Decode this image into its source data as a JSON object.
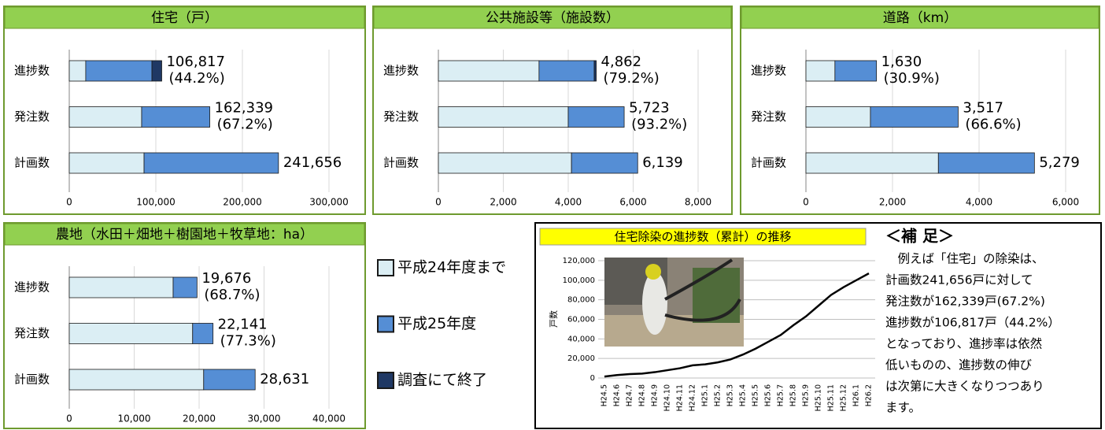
{
  "chart_data": [
    {
      "type": "bar",
      "orientation": "horizontal",
      "stacked": true,
      "title": "住宅（戸）",
      "categories": [
        "進捗数",
        "発注数",
        "計画数"
      ],
      "series": [
        {
          "values": [
            19000,
            83600,
            86400
          ]
        },
        {
          "values": [
            76500,
            78739,
            155256
          ]
        },
        {
          "values": [
            11317,
            null,
            null
          ]
        }
      ],
      "data_labels": [
        [
          "106,817",
          "(44.2%)"
        ],
        [
          "162,339",
          "(67.2%)"
        ],
        [
          "241,656"
        ]
      ],
      "xlim": [
        0,
        300000
      ],
      "xticks": [
        0,
        {
          "value": 100000,
          "label": "100,000"
        },
        {
          "value": 200000,
          "label": "200,000"
        },
        {
          "value": 300000,
          "label": "300,000"
        }
      ],
      "grid": true
    },
    {
      "type": "bar",
      "orientation": "horizontal",
      "stacked": true,
      "title": "公共施設等（施設数）",
      "categories": [
        "進捗数",
        "発注数",
        "計画数"
      ],
      "series": [
        {
          "values": [
            3100,
            4000,
            4100
          ]
        },
        {
          "values": [
            1700,
            1723,
            2039
          ]
        },
        {
          "values": [
            62,
            null,
            null
          ]
        }
      ],
      "data_labels": [
        [
          "4,862",
          "(79.2%)"
        ],
        [
          "5,723",
          "(93.2%)"
        ],
        [
          "6,139"
        ]
      ],
      "xlim": [
        0,
        8000
      ],
      "xticks": [
        0,
        {
          "value": 2000,
          "label": "2,000"
        },
        {
          "value": 4000,
          "label": "4,000"
        },
        {
          "value": 6000,
          "label": "6,000"
        },
        {
          "value": 8000,
          "label": "8,000"
        }
      ],
      "grid": true
    },
    {
      "type": "bar",
      "orientation": "horizontal",
      "stacked": true,
      "title": "道路（km）",
      "categories": [
        "進捗数",
        "発注数",
        "計画数"
      ],
      "series": [
        {
          "values": [
            670,
            1490,
            3060
          ]
        },
        {
          "values": [
            960,
            2027,
            2219
          ]
        }
      ],
      "data_labels": [
        [
          "1,630",
          "(30.9%)"
        ],
        [
          "3,517",
          "(66.6%)"
        ],
        [
          "5,279"
        ]
      ],
      "xlim": [
        0,
        6000
      ],
      "xticks": [
        0,
        {
          "value": 2000,
          "label": "2,000"
        },
        {
          "value": 4000,
          "label": "4,000"
        },
        {
          "value": 6000,
          "label": "6,000"
        }
      ],
      "grid": true
    },
    {
      "type": "bar",
      "orientation": "horizontal",
      "stacked": true,
      "title": "農地（水田＋畑地＋樹園地＋牧草地：ha）",
      "categories": [
        "進捗数",
        "発注数",
        "計画数"
      ],
      "series": [
        {
          "values": [
            16000,
            19000,
            20700
          ]
        },
        {
          "values": [
            3676,
            3141,
            7931
          ]
        }
      ],
      "data_labels": [
        [
          "19,676",
          "(68.7%)"
        ],
        [
          "22,141",
          "(77.3%)"
        ],
        [
          "28,631"
        ]
      ],
      "xlim": [
        0,
        40000
      ],
      "xticks": [
        0,
        {
          "value": 10000,
          "label": "10,000"
        },
        {
          "value": 20000,
          "label": "20,000"
        },
        {
          "value": 30000,
          "label": "30,000"
        },
        {
          "value": 40000,
          "label": "40,000"
        }
      ],
      "grid": true
    },
    {
      "type": "line",
      "title": "住宅除染の進捗数（累計）の推移",
      "ylabel": "戸数",
      "categories": [
        "H24.5",
        "H24.6",
        "H24.7",
        "H24.8",
        "H24.9",
        "H24.10",
        "H24.11",
        "H24.12",
        "H25.1",
        "H25.2",
        "H25.3",
        "H25.4",
        "H25.5",
        "H25.6",
        "H25.7",
        "H25.8",
        "H25.9",
        "H25.10",
        "H25.11",
        "H25.12",
        "H26.1",
        "H26.2"
      ],
      "values": [
        1500,
        3000,
        4000,
        4500,
        6000,
        8000,
        10000,
        13000,
        14000,
        16000,
        19000,
        24000,
        30000,
        37000,
        44000,
        54000,
        63000,
        74000,
        85000,
        93000,
        100000,
        107000
      ],
      "color": "#000000",
      "ylim": [
        0,
        120000
      ],
      "yticks": [
        0,
        {
          "value": 20000,
          "label": "20,000"
        },
        {
          "value": 40000,
          "label": "40,000"
        },
        {
          "value": 60000,
          "label": "60,000"
        },
        {
          "value": 80000,
          "label": "80,000"
        },
        {
          "value": 100000,
          "label": "100,000"
        },
        {
          "value": 120000,
          "label": "120,000"
        }
      ],
      "grid": true
    }
  ],
  "legend": {
    "items": [
      {
        "name": "平成24年度まで",
        "color": "#dbeef4"
      },
      {
        "name": "平成25年度",
        "color": "#558ed5"
      },
      {
        "name": "調査にて終了",
        "color": "#1f3864"
      }
    ]
  },
  "note": {
    "title": "＜補 足＞",
    "lines": [
      "　例えば「住宅」の除染は、",
      "計画数241,656戸に対して",
      "発注数が162,339戸(67.2%)",
      "進捗数が106,817戸（44.2%）",
      "となっており、進捗率は依然",
      "低いものの、進捗数の伸び",
      "は次第に大きくなりつつあり",
      "ます。"
    ]
  }
}
